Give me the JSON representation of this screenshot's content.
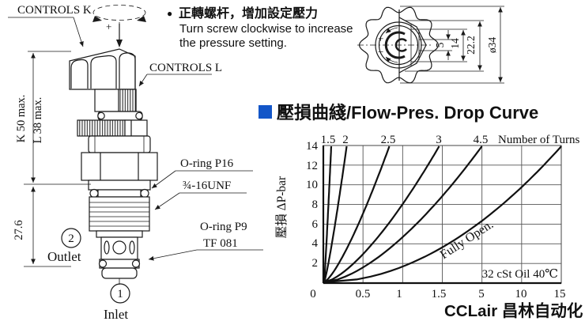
{
  "note": {
    "bullet": "●",
    "zh": "正轉螺杆，增加設定壓力",
    "en1": "Turn screw clockwise to increase",
    "en2": "the pressure setting."
  },
  "valve": {
    "controls_k": "CONTROLS K",
    "controls_l": "CONTROLS L",
    "oring_p16": "O-ring P16",
    "thread_spec": "¾-16UNF",
    "oring_p9": "O-ring P9",
    "tf_code": "TF 081",
    "port2_num": "2",
    "port2_label": "Outlet",
    "port1_num": "1",
    "port1_label": "Inlet",
    "dim_k": "K 50 max.",
    "dim_l": "L 38 max.",
    "dim_height": "27.6",
    "rotation_plus": "+"
  },
  "knob_view": {
    "dim_5": "5",
    "dim_14": "14",
    "dim_22": "22.2",
    "dim_dia": "ø34",
    "plus": "+",
    "minus": "−"
  },
  "chart_data": {
    "type": "line",
    "title": "壓損曲綫/Flow-Pres. Drop Curve",
    "ylabel": "壓損 ΔP-bar",
    "top_axis_label": "Number of Turns",
    "x_tick_labels": [
      "0",
      "0.5",
      "1",
      "1.5",
      "5",
      "10",
      "15"
    ],
    "y_ticks": [
      0,
      2,
      4,
      6,
      8,
      10,
      12,
      14
    ],
    "ylim": [
      0,
      14
    ],
    "grid": true,
    "annotation": "32 cSt Oil 40℃",
    "series": [
      {
        "name": "1.5",
        "reach_frac": 0.03,
        "exp": 1.12
      },
      {
        "name": "2",
        "reach_frac": 0.095,
        "exp": 1.18
      },
      {
        "name": "2.5",
        "reach_frac": 0.275,
        "exp": 1.32
      },
      {
        "name": "3",
        "reach_frac": 0.485,
        "exp": 1.45
      },
      {
        "name": "4.5",
        "reach_frac": 0.665,
        "exp": 1.58
      },
      {
        "name": "Fully Open.",
        "reach_frac": 1.0,
        "exp": 1.95
      }
    ],
    "series_note": "each curve rises from origin (0 bar) to 14 bar; reach_frac = fraction of x-axis width where curve reaches 14 bar"
  },
  "watermark": "CCLair 昌林自动化",
  "colors": {
    "title_blue": "#1e74e8",
    "square_blue": "#1356c8",
    "line": "#1a1a1a"
  }
}
